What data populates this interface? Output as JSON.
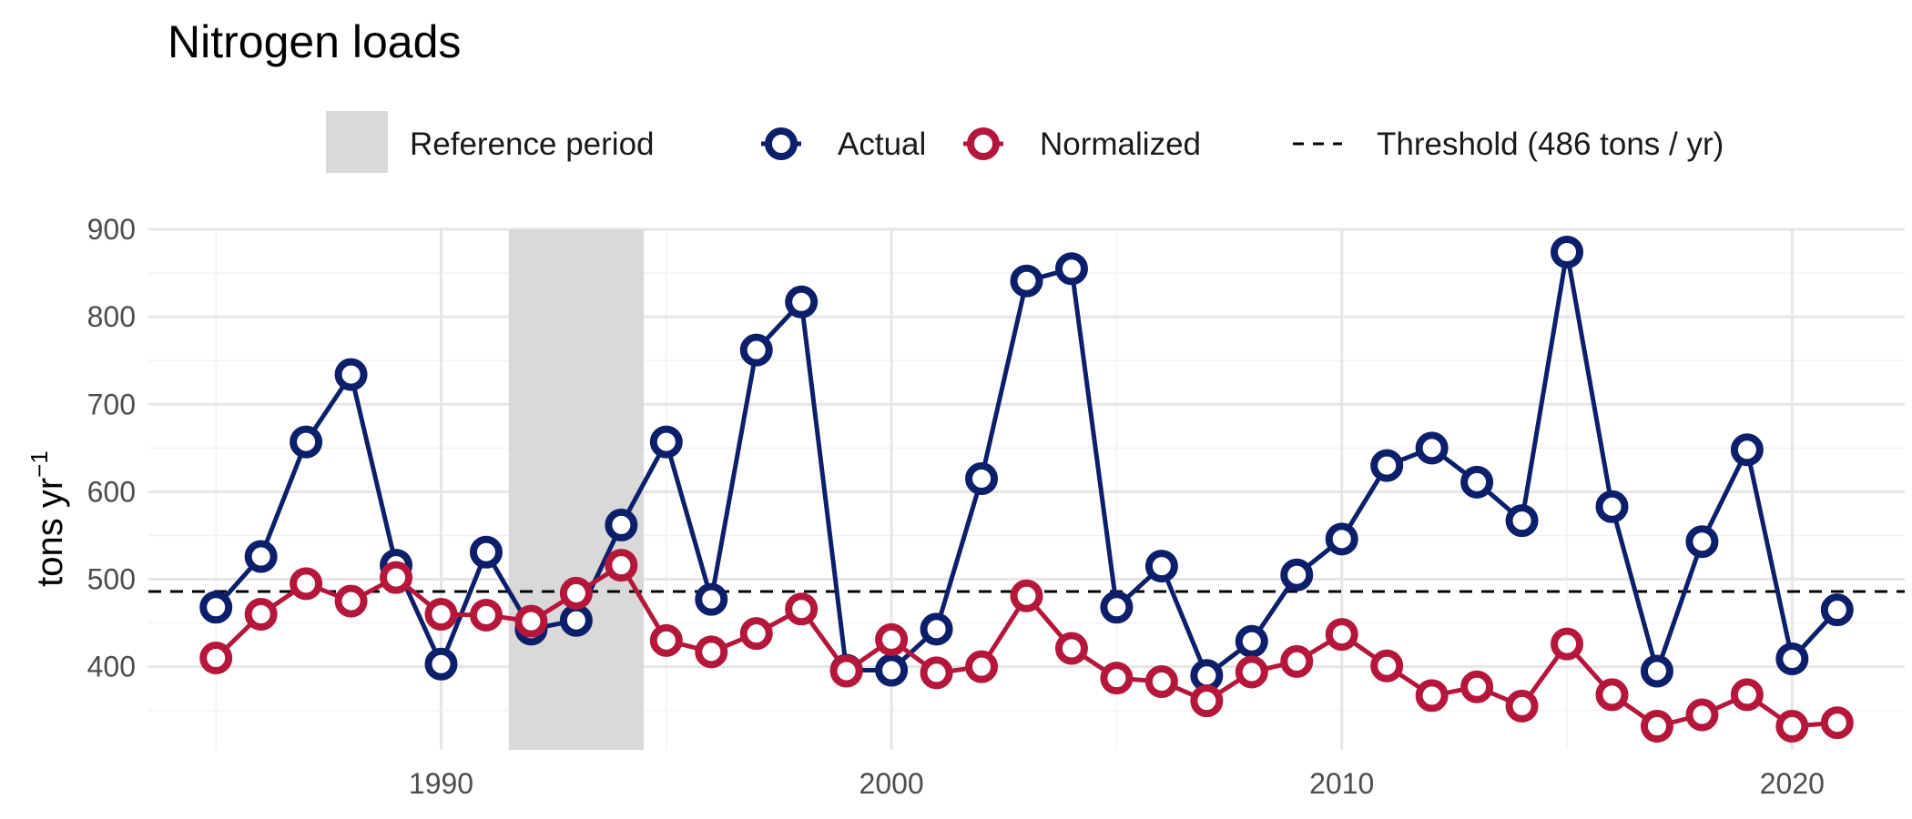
{
  "chart_data": {
    "type": "line",
    "title": "Nitrogen loads",
    "xlabel": "",
    "ylabel": "tons yr",
    "ylabel_superscript": "−1",
    "xlim": [
      1983.5,
      2022.5
    ],
    "ylim": [
      305,
      900
    ],
    "x_ticks": [
      1990,
      2000,
      2010,
      2020
    ],
    "x_tick_labels": [
      "1990",
      "2000",
      "2010",
      "2020"
    ],
    "y_ticks": [
      400,
      500,
      600,
      700,
      800,
      900
    ],
    "y_tick_labels": [
      "400",
      "500",
      "600",
      "700",
      "800",
      "900"
    ],
    "grid": true,
    "legend_position": "top",
    "reference_period": {
      "label": "Reference period",
      "start": 1991.5,
      "end": 1994.5,
      "color": "#d9d9d9"
    },
    "threshold": {
      "label": "Threshold (486 tons / yr)",
      "value": 486,
      "color": "#000000"
    },
    "x": [
      1985,
      1986,
      1987,
      1988,
      1989,
      1990,
      1991,
      1992,
      1993,
      1994,
      1995,
      1996,
      1997,
      1998,
      1999,
      2000,
      2001,
      2002,
      2003,
      2004,
      2005,
      2006,
      2007,
      2008,
      2009,
      2010,
      2011,
      2012,
      2013,
      2014,
      2015,
      2016,
      2017,
      2018,
      2019,
      2020,
      2021
    ],
    "series": [
      {
        "name": "Actual",
        "color": "#0d1f6b",
        "values": [
          468,
          526,
          657,
          734,
          516,
          403,
          531,
          443,
          453,
          562,
          657,
          477,
          762,
          817,
          396,
          396,
          443,
          615,
          841,
          855,
          468,
          515,
          390,
          429,
          505,
          546,
          630,
          650,
          611,
          567,
          874,
          583,
          395,
          543,
          648,
          409,
          465
        ]
      },
      {
        "name": "Normalized",
        "color": "#b5173a",
        "values": [
          410,
          460,
          495,
          475,
          502,
          460,
          459,
          452,
          484,
          516,
          430,
          417,
          438,
          466,
          395,
          431,
          393,
          400,
          481,
          421,
          387,
          383,
          361,
          394,
          406,
          437,
          401,
          367,
          377,
          355,
          426,
          368,
          332,
          345,
          368,
          332,
          336
        ]
      }
    ]
  }
}
